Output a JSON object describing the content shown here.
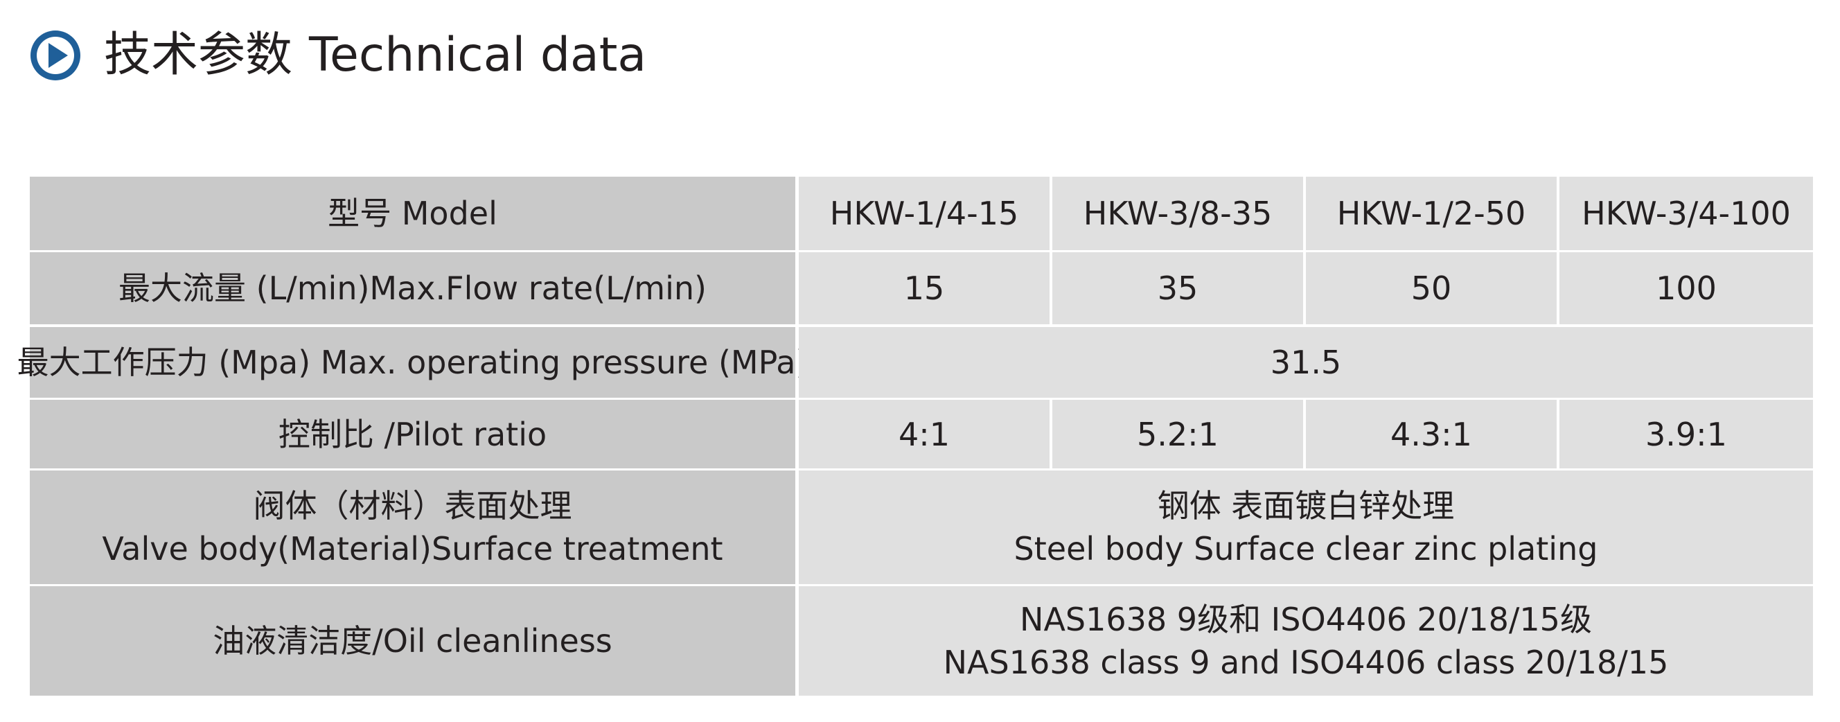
{
  "header": {
    "title_cn": "技术参数",
    "title_en": "Technical data"
  },
  "table": {
    "rows": [
      {
        "label": [
          "型号 Model"
        ],
        "cells": [
          [
            "HKW-1/4-15"
          ],
          [
            "HKW-3/8-35"
          ],
          [
            "HKW-1/2-50"
          ],
          [
            "HKW-3/4-100"
          ]
        ]
      },
      {
        "label": [
          "最大流量 (L/min)Max.Flow rate(L/min)"
        ],
        "cells": [
          [
            "15"
          ],
          [
            "35"
          ],
          [
            "50"
          ],
          [
            "100"
          ]
        ]
      },
      {
        "label": [
          "最大工作压力 (Mpa) Max. operating pressure (MPa)"
        ],
        "cells": [
          [
            "31.5"
          ]
        ]
      },
      {
        "label": [
          "控制比 /Pilot ratio"
        ],
        "cells": [
          [
            "4:1"
          ],
          [
            "5.2:1"
          ],
          [
            "4.3:1"
          ],
          [
            "3.9:1"
          ]
        ]
      },
      {
        "label": [
          "阀体（材料）表面处理",
          "Valve body(Material)Surface treatment"
        ],
        "cells": [
          [
            "钢体 表面镀白锌处理",
            "Steel body Surface clear zinc plating"
          ]
        ]
      },
      {
        "label": [
          "油液清洁度/Oil cleanliness"
        ],
        "cells": [
          [
            "NAS1638 9级和 ISO4406 20/18/15级",
            "NAS1638 class 9 and ISO4406 class 20/18/15"
          ]
        ]
      }
    ]
  }
}
